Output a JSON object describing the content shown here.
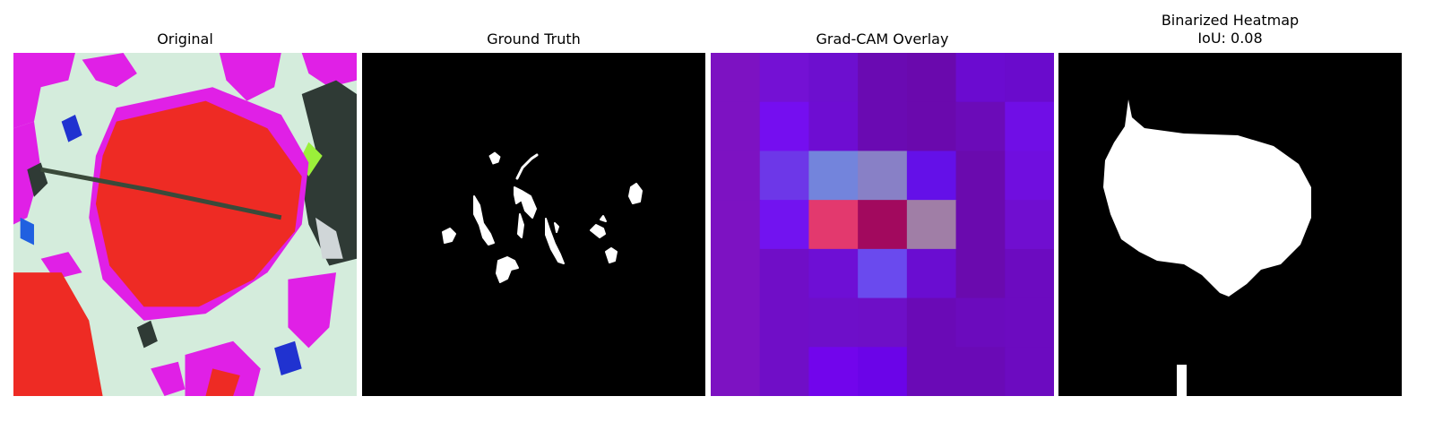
{
  "panels": [
    {
      "title": "Original"
    },
    {
      "title": "Ground Truth"
    },
    {
      "title": "Grad-CAM Overlay"
    },
    {
      "title": "Binarized Heatmap",
      "subtitle": "IoU: 0.08"
    }
  ],
  "colors": {
    "background": "#ffffff",
    "mask_bg": "#000000",
    "mask_fg": "#ffffff",
    "leaf_red": "#ee2b24",
    "magenta": "#e020e6",
    "pale_green": "#d4ecdc"
  },
  "gradcam_grid": [
    [
      "#7d12c2",
      "#7411d4",
      "#6d0fcf",
      "#6a0ab2",
      "#6a09ad",
      "#6b0bd0",
      "#6a0bcc"
    ],
    [
      "#7d12c2",
      "#750ef0",
      "#6e0dd2",
      "#6a0ab2",
      "#6a09ad",
      "#6b0bb8",
      "#700ee6"
    ],
    [
      "#7d12c2",
      "#6d37e8",
      "#7384dc",
      "#8880c6",
      "#6410e8",
      "#6a0aae",
      "#700edf"
    ],
    [
      "#7d12c2",
      "#7213f0",
      "#e3396e",
      "#a2095e",
      "#a07ea6",
      "#6a0aae",
      "#700ed0"
    ],
    [
      "#7d12c2",
      "#700ec7",
      "#6e0fd5",
      "#6a4aee",
      "#6a0dd1",
      "#6a0aae",
      "#6c0bc0"
    ],
    [
      "#7d12c2",
      "#700ec7",
      "#6e0fc9",
      "#6e0fc7",
      "#6a0ab6",
      "#6b0bbd",
      "#6c0bc0"
    ],
    [
      "#7d12c2",
      "#700ec7",
      "#7205ec",
      "#6b04e8",
      "#6a0ab6",
      "#6a0ab6",
      "#6c0bc0"
    ]
  ]
}
